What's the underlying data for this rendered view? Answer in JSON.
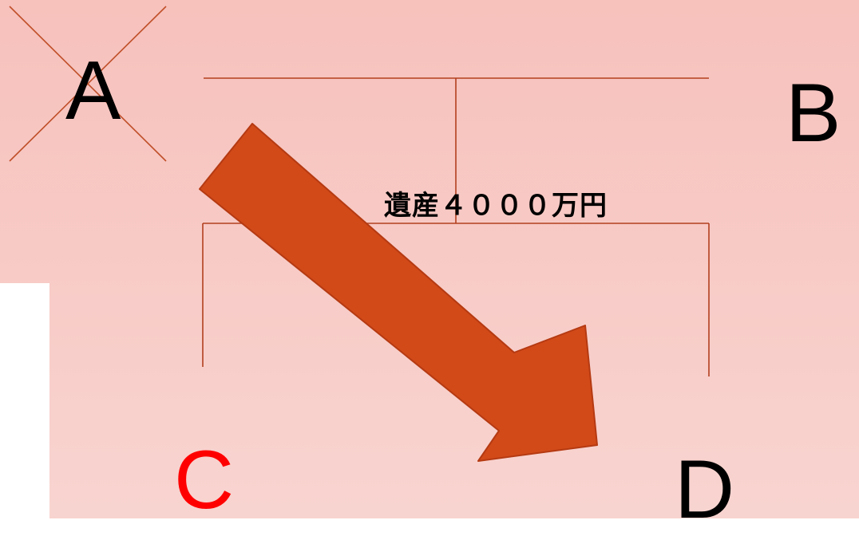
{
  "diagram": {
    "nodes": {
      "a": {
        "label": "A",
        "crossed_out": true
      },
      "b": {
        "label": "B"
      },
      "c": {
        "label": "C",
        "highlight": true
      },
      "d": {
        "label": "D"
      }
    },
    "estate_label": "遺産４０００万円"
  },
  "colors": {
    "background_top": "#f7c1bc",
    "background_bottom": "#f8d4d0",
    "white_panel": "#ffffff",
    "connector_line": "#b3401f",
    "cross_mark": "#c0502a",
    "arrow_fill": "#d24a18",
    "arrow_stroke": "#b53a12",
    "highlight_text": "#ff0000",
    "text": "#000000"
  }
}
